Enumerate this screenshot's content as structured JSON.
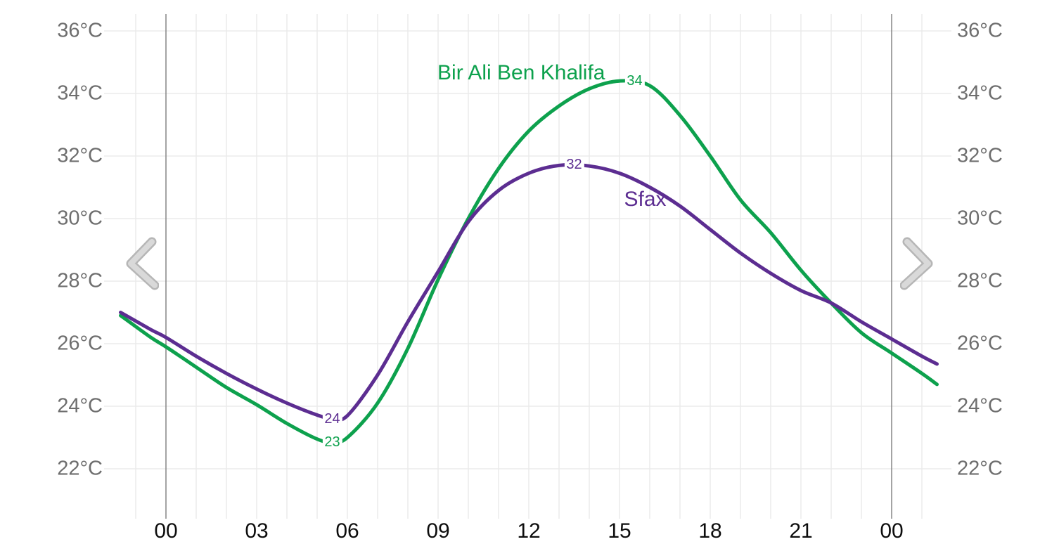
{
  "chart_data": {
    "type": "line",
    "title": "",
    "unit": "°C",
    "legend_position": "inline-labels",
    "grid": "on",
    "x_axis": {
      "tick_labels": [
        "00",
        "03",
        "06",
        "09",
        "12",
        "15",
        "18",
        "21",
        "00"
      ],
      "tick_hours": [
        0,
        3,
        6,
        9,
        12,
        15,
        18,
        21,
        24
      ],
      "range_hours": [
        -1.5,
        25.5
      ],
      "midnight_hours": [
        0,
        24
      ]
    },
    "y_axis": {
      "ticks": [
        {
          "temp": 22,
          "label": "22°C"
        },
        {
          "temp": 24,
          "label": "24°C"
        },
        {
          "temp": 26,
          "label": "26°C"
        },
        {
          "temp": 28,
          "label": "28°C"
        },
        {
          "temp": 30,
          "label": "30°C"
        },
        {
          "temp": 32,
          "label": "32°C"
        },
        {
          "temp": 34,
          "label": "34°C"
        },
        {
          "temp": 36,
          "label": "36°C"
        }
      ],
      "range": [
        22,
        36
      ],
      "shown_on": [
        "left",
        "right"
      ]
    },
    "series": [
      {
        "name": "Bir Ali Ben Khalifa",
        "color": "#0da14d",
        "points": [
          [
            -1.5,
            26.9
          ],
          [
            -0.5,
            26.2
          ],
          [
            0,
            25.9
          ],
          [
            1,
            25.25
          ],
          [
            2,
            24.6
          ],
          [
            3,
            24.05
          ],
          [
            4,
            23.45
          ],
          [
            5,
            22.95
          ],
          [
            5.5,
            22.85
          ],
          [
            6,
            23.0
          ],
          [
            7,
            24.1
          ],
          [
            8,
            25.85
          ],
          [
            9,
            28.05
          ],
          [
            10,
            30.0
          ],
          [
            11,
            31.6
          ],
          [
            12,
            32.8
          ],
          [
            13,
            33.6
          ],
          [
            14,
            34.15
          ],
          [
            15,
            34.4
          ],
          [
            16,
            34.25
          ],
          [
            17,
            33.3
          ],
          [
            18,
            32.0
          ],
          [
            19,
            30.6
          ],
          [
            20,
            29.55
          ],
          [
            21,
            28.35
          ],
          [
            22,
            27.3
          ],
          [
            23,
            26.35
          ],
          [
            24,
            25.7
          ],
          [
            25,
            25.05
          ],
          [
            25.5,
            24.7
          ]
        ]
      },
      {
        "name": "Sfax",
        "color": "#5c2d91",
        "points": [
          [
            -1.5,
            27.0
          ],
          [
            -0.5,
            26.45
          ],
          [
            0,
            26.2
          ],
          [
            1,
            25.6
          ],
          [
            2,
            25.05
          ],
          [
            3,
            24.55
          ],
          [
            4,
            24.1
          ],
          [
            5,
            23.72
          ],
          [
            5.5,
            23.6
          ],
          [
            6,
            23.7
          ],
          [
            7,
            25.0
          ],
          [
            8,
            26.7
          ],
          [
            9,
            28.3
          ],
          [
            10,
            29.9
          ],
          [
            11,
            30.9
          ],
          [
            12,
            31.45
          ],
          [
            13,
            31.7
          ],
          [
            14,
            31.68
          ],
          [
            15,
            31.45
          ],
          [
            16,
            31.0
          ],
          [
            17,
            30.4
          ],
          [
            18,
            29.65
          ],
          [
            19,
            28.9
          ],
          [
            20,
            28.25
          ],
          [
            21,
            27.7
          ],
          [
            22,
            27.3
          ],
          [
            23,
            26.7
          ],
          [
            24,
            26.15
          ],
          [
            25,
            25.6
          ],
          [
            25.5,
            25.35
          ]
        ]
      }
    ],
    "point_labels": [
      {
        "text": "34",
        "series": "Bir Ali Ben Khalifa",
        "hour": 15.5,
        "temp": 34.4,
        "color": "#0da14d"
      },
      {
        "text": "32",
        "series": "Sfax",
        "hour": 13.5,
        "temp": 31.72,
        "color": "#5c2d91"
      },
      {
        "text": "24",
        "series": "Sfax",
        "hour": 5.5,
        "temp": 23.6,
        "color": "#5c2d91"
      },
      {
        "text": "23",
        "series": "Bir Ali Ben Khalifa",
        "hour": 5.5,
        "temp": 22.85,
        "color": "#0da14d"
      }
    ],
    "series_name_labels": [
      {
        "text": "Bir Ali Ben Khalifa",
        "hour": 11.75,
        "temp": 34.65,
        "color": "#0da14d"
      },
      {
        "text": "Sfax",
        "hour": 15.85,
        "temp": 30.6,
        "color": "#5c2d91"
      }
    ]
  },
  "nav": {
    "prev_icon": "chevron-left",
    "next_icon": "chevron-right"
  },
  "colors": {
    "grid_light": "#ebebeb",
    "grid_midnight": "#858585",
    "y_label": "#6e6e6e",
    "x_label": "#0d0d0d",
    "chevron_outer": "#b6b6b6",
    "chevron_inner": "#d9d9d9"
  }
}
